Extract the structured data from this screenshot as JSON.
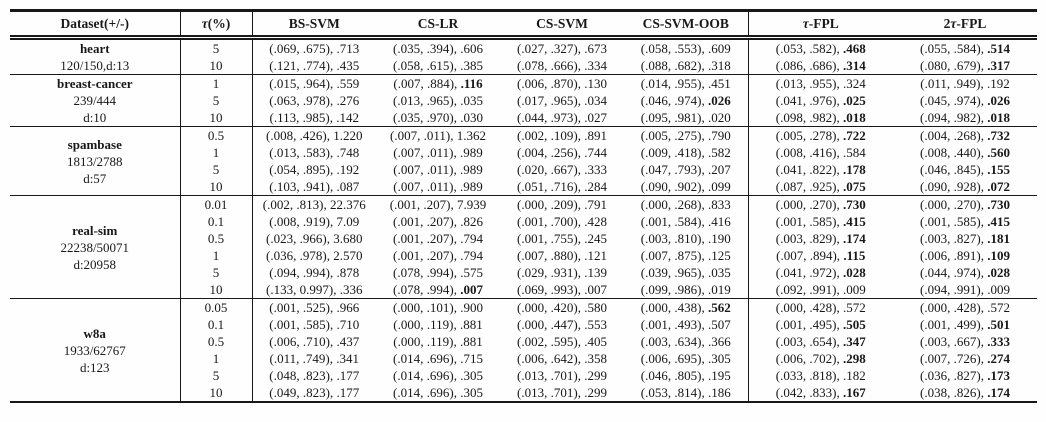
{
  "page": {
    "background": "#fefefe",
    "text_color": "#181818",
    "rule_color": "#181818"
  },
  "table": {
    "columns": [
      "Dataset(+/-)",
      "τ(%)",
      "BS-SVM",
      "CS-LR",
      "CS-SVM",
      "CS-SVM-OOB",
      "τ-FPL",
      "2τ-FPL"
    ],
    "groups": [
      {
        "name": "heart",
        "sub": [
          "120/150,d:13"
        ],
        "rows": [
          {
            "tau": "5",
            "cells": [
              [
                "(.069, .675)",
                ".713",
                0
              ],
              [
                "(.035, .394)",
                ".606",
                0
              ],
              [
                "(.027, .327)",
                ".673",
                0
              ],
              [
                "(.058, .553)",
                ".609",
                0
              ],
              [
                "(.053, .582)",
                ".468",
                1
              ],
              [
                "(.055, .584)",
                ".514",
                1
              ]
            ]
          },
          {
            "tau": "10",
            "cells": [
              [
                "(.121, .774)",
                ".435",
                0
              ],
              [
                "(.058, .615)",
                ".385",
                0
              ],
              [
                "(.078, .666)",
                ".334",
                0
              ],
              [
                "(.088, .682)",
                ".318",
                0
              ],
              [
                "(.086, .686)",
                ".314",
                1
              ],
              [
                "(.080, .679)",
                ".317",
                1
              ]
            ]
          }
        ]
      },
      {
        "name": "breast-cancer",
        "sub": [
          "239/444",
          "d:10"
        ],
        "rows": [
          {
            "tau": "1",
            "cells": [
              [
                "(.015, .964)",
                ".559",
                0
              ],
              [
                "(.007, .884)",
                ".116",
                1
              ],
              [
                "(.006, .870)",
                ".130",
                0
              ],
              [
                "(.014, .955)",
                ".451",
                0
              ],
              [
                "(.013, .955)",
                ".324",
                0
              ],
              [
                "(.011, .949)",
                ".192",
                0
              ]
            ]
          },
          {
            "tau": "5",
            "cells": [
              [
                "(.063, .978)",
                ".276",
                0
              ],
              [
                "(.013, .965)",
                ".035",
                0
              ],
              [
                "(.017, .965)",
                ".034",
                0
              ],
              [
                "(.046, .974)",
                ".026",
                1
              ],
              [
                "(.041, .976)",
                ".025",
                1
              ],
              [
                "(.045, .974)",
                ".026",
                1
              ]
            ]
          },
          {
            "tau": "10",
            "cells": [
              [
                "(.113, .985)",
                ".142",
                0
              ],
              [
                "(.035, .970)",
                ".030",
                0
              ],
              [
                "(.044, .973)",
                ".027",
                0
              ],
              [
                "(.095, .981)",
                ".020",
                0
              ],
              [
                "(.098, .982)",
                ".018",
                1
              ],
              [
                "(.094, .982)",
                ".018",
                1
              ]
            ]
          }
        ]
      },
      {
        "name": "spambase",
        "sub": [
          "1813/2788",
          "d:57"
        ],
        "rows": [
          {
            "tau": "0.5",
            "cells": [
              [
                "(.008, .426)",
                "1.220",
                0
              ],
              [
                "(.007, .011)",
                "1.362",
                0
              ],
              [
                "(.002, .109)",
                ".891",
                0
              ],
              [
                "(.005, .275)",
                ".790",
                0
              ],
              [
                "(.005, .278)",
                ".722",
                1
              ],
              [
                "(.004, .268)",
                ".732",
                1
              ]
            ]
          },
          {
            "tau": "1",
            "cells": [
              [
                "(.013, .583)",
                ".748",
                0
              ],
              [
                "(.007, .011)",
                ".989",
                0
              ],
              [
                "(.004, .256)",
                ".744",
                0
              ],
              [
                "(.009, .418)",
                ".582",
                0
              ],
              [
                "(.008, .416)",
                ".584",
                0
              ],
              [
                "(.008, .440)",
                ".560",
                1
              ]
            ]
          },
          {
            "tau": "5",
            "cells": [
              [
                "(.054, .895)",
                ".192",
                0
              ],
              [
                "(.007, .011)",
                ".989",
                0
              ],
              [
                "(.020, .667)",
                ".333",
                0
              ],
              [
                "(.047, .793)",
                ".207",
                0
              ],
              [
                "(.041, .822)",
                ".178",
                1
              ],
              [
                "(.046, .845)",
                ".155",
                1
              ]
            ]
          },
          {
            "tau": "10",
            "cells": [
              [
                "(.103, .941)",
                ".087",
                0
              ],
              [
                "(.007, .011)",
                ".989",
                0
              ],
              [
                "(.051, .716)",
                ".284",
                0
              ],
              [
                "(.090, .902)",
                ".099",
                0
              ],
              [
                "(.087, .925)",
                ".075",
                1
              ],
              [
                "(.090, .928)",
                ".072",
                1
              ]
            ]
          }
        ]
      },
      {
        "name": "real-sim",
        "sub": [
          "22238/50071",
          "d:20958"
        ],
        "rows": [
          {
            "tau": "0.01",
            "cells": [
              [
                "(.002, .813)",
                "22.376",
                0
              ],
              [
                "(.001, .207)",
                "7.939",
                0
              ],
              [
                "(.000, .209)",
                ".791",
                0
              ],
              [
                "(.000, .268)",
                ".833",
                0
              ],
              [
                "(.000, .270)",
                ".730",
                1
              ],
              [
                "(.000, .270)",
                ".730",
                1
              ]
            ]
          },
          {
            "tau": "0.1",
            "cells": [
              [
                "(.008, .919)",
                "7.09",
                0
              ],
              [
                "(.001, .207)",
                ".826",
                0
              ],
              [
                "(.001, .700)",
                ".428",
                0
              ],
              [
                "(.001, .584)",
                ".416",
                0
              ],
              [
                "(.001, .585)",
                ".415",
                1
              ],
              [
                "(.001, .585)",
                ".415",
                1
              ]
            ]
          },
          {
            "tau": "0.5",
            "cells": [
              [
                "(.023, .966)",
                "3.680",
                0
              ],
              [
                "(.001, .207)",
                ".794",
                0
              ],
              [
                "(.001, .755)",
                ".245",
                0
              ],
              [
                "(.003, .810)",
                ".190",
                0
              ],
              [
                "(.003, .829)",
                ".174",
                1
              ],
              [
                "(.003, .827)",
                ".181",
                1
              ]
            ]
          },
          {
            "tau": "1",
            "cells": [
              [
                "(.036, .978)",
                "2.570",
                0
              ],
              [
                "(.001, .207)",
                ".794",
                0
              ],
              [
                "(.007, .880)",
                ".121",
                0
              ],
              [
                "(.007, .875)",
                ".125",
                0
              ],
              [
                "(.007, .894)",
                ".115",
                1
              ],
              [
                "(.006, .891)",
                ".109",
                1
              ]
            ]
          },
          {
            "tau": "5",
            "cells": [
              [
                "(.094, .994)",
                ".878",
                0
              ],
              [
                "(.078, .994)",
                ".575",
                0
              ],
              [
                "(.029, .931)",
                ".139",
                0
              ],
              [
                "(.039, .965)",
                ".035",
                0
              ],
              [
                "(.041, .972)",
                ".028",
                1
              ],
              [
                "(.044, .974)",
                ".028",
                1
              ]
            ]
          },
          {
            "tau": "10",
            "cells": [
              [
                "(.133, 0.997)",
                ".336",
                0
              ],
              [
                "(.078, .994)",
                ".007",
                1
              ],
              [
                "(.069, .993)",
                ".007",
                0
              ],
              [
                "(.099, .986)",
                ".019",
                0
              ],
              [
                "(.092, .991)",
                ".009",
                0
              ],
              [
                "(.094, .991)",
                ".009",
                0
              ]
            ]
          }
        ]
      },
      {
        "name": "w8a",
        "sub": [
          "1933/62767",
          "d:123"
        ],
        "rows": [
          {
            "tau": "0.05",
            "cells": [
              [
                "(.001, .525)",
                ".966",
                0
              ],
              [
                "(.000, .101)",
                ".900",
                0
              ],
              [
                "(.000, .420)",
                ".580",
                0
              ],
              [
                "(.000, .438)",
                ".562",
                1
              ],
              [
                "(.000, .428)",
                ".572",
                0
              ],
              [
                "(.000, .428)",
                ".572",
                0
              ]
            ]
          },
          {
            "tau": "0.1",
            "cells": [
              [
                "(.001, .585)",
                ".710",
                0
              ],
              [
                "(.000, .119)",
                ".881",
                0
              ],
              [
                "(.000, .447)",
                ".553",
                0
              ],
              [
                "(.001, .493)",
                ".507",
                0
              ],
              [
                "(.001, .495)",
                ".505",
                1
              ],
              [
                "(.001, .499)",
                ".501",
                1
              ]
            ]
          },
          {
            "tau": "0.5",
            "cells": [
              [
                "(.006, .710)",
                ".437",
                0
              ],
              [
                "(.000, .119)",
                ".881",
                0
              ],
              [
                "(.002, .595)",
                ".405",
                0
              ],
              [
                "(.003, .634)",
                ".366",
                0
              ],
              [
                "(.003, .654)",
                ".347",
                1
              ],
              [
                "(.003, .667)",
                ".333",
                1
              ]
            ]
          },
          {
            "tau": "1",
            "cells": [
              [
                "(.011, .749)",
                ".341",
                0
              ],
              [
                "(.014, .696)",
                ".715",
                0
              ],
              [
                "(.006, .642)",
                ".358",
                0
              ],
              [
                "(.006, .695)",
                ".305",
                0
              ],
              [
                "(.006, .702)",
                ".298",
                1
              ],
              [
                "(.007, .726)",
                ".274",
                1
              ]
            ]
          },
          {
            "tau": "5",
            "cells": [
              [
                "(.048, .823)",
                ".177",
                0
              ],
              [
                "(.014, .696)",
                ".305",
                0
              ],
              [
                "(.013, .701)",
                ".299",
                0
              ],
              [
                "(.046, .805)",
                ".195",
                0
              ],
              [
                "(.033, .818)",
                ".182",
                0
              ],
              [
                "(.036, .827)",
                ".173",
                1
              ]
            ]
          },
          {
            "tau": "10",
            "cells": [
              [
                "(.049, .823)",
                ".177",
                0
              ],
              [
                "(.014, .696)",
                ".305",
                0
              ],
              [
                "(.013, .701)",
                ".299",
                0
              ],
              [
                "(.053, .814)",
                ".186",
                0
              ],
              [
                "(.042, .833)",
                ".167",
                1
              ],
              [
                "(.038, .826)",
                ".174",
                1
              ]
            ]
          }
        ]
      }
    ]
  }
}
